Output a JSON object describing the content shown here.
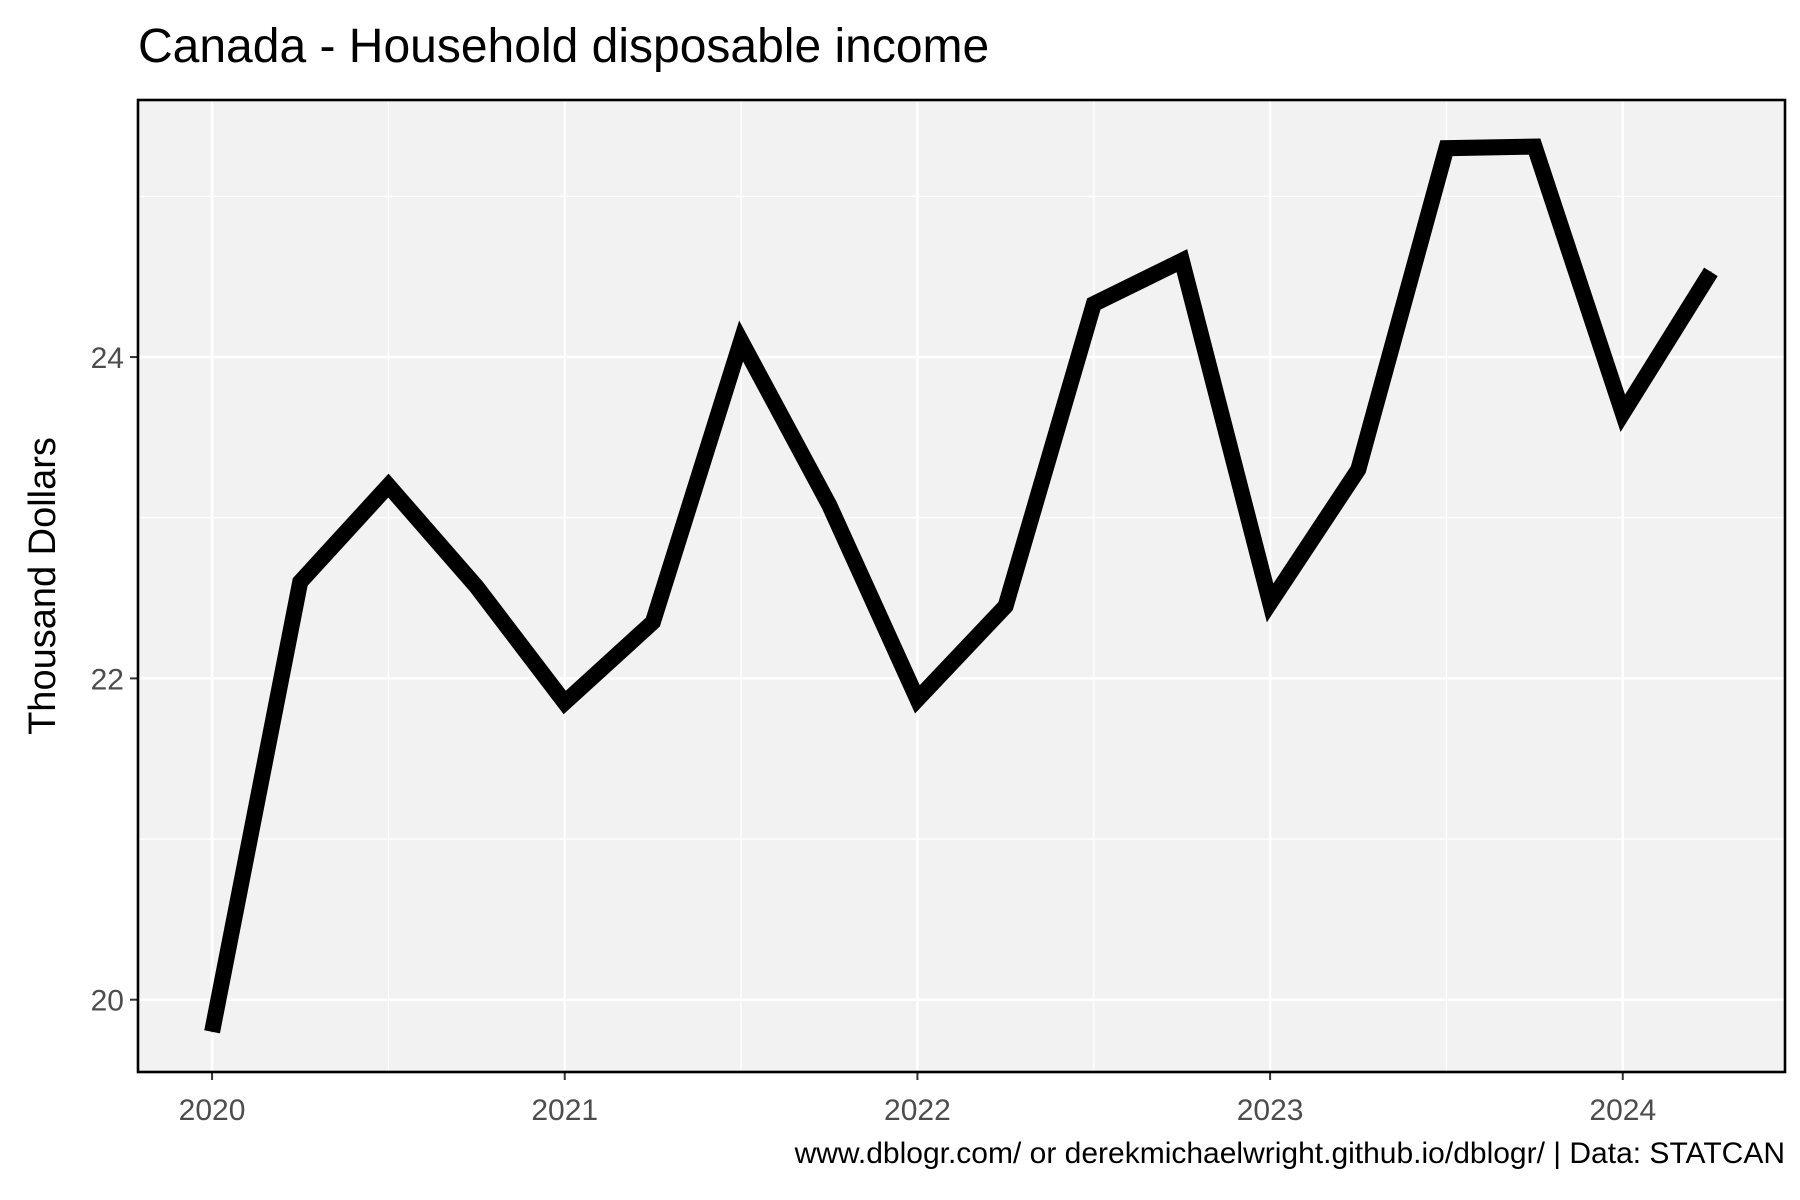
{
  "chart_data": {
    "type": "line",
    "title": "Canada - Household disposable income",
    "xlabel": "",
    "ylabel": "Thousand Dollars",
    "caption": "www.dblogr.com/ or derekmichaelwright.github.io/dblogr/ | Data: STATCAN",
    "x_tick_labels": [
      "2020",
      "2021",
      "2022",
      "2023",
      "2024"
    ],
    "y_tick_labels": [
      "20",
      "22",
      "24"
    ],
    "x_ticks": [
      2020,
      2021,
      2022,
      2023,
      2024
    ],
    "y_ticks": [
      20,
      22,
      24
    ],
    "xlim": [
      2019.79,
      2024.46
    ],
    "ylim": [
      19.55,
      25.6
    ],
    "grid": true,
    "panel_color": "#f2f2f2",
    "line_color": "#000000",
    "series": [
      {
        "x": [
          2020.0,
          2020.25,
          2020.5,
          2020.75,
          2021.0,
          2021.25,
          2021.5,
          2021.75,
          2022.0,
          2022.25,
          2022.5,
          2022.75,
          2023.0,
          2023.25,
          2023.5,
          2023.75,
          2024.0,
          2024.25
        ],
        "values": [
          19.8,
          22.6,
          23.2,
          22.57,
          21.85,
          22.35,
          24.1,
          23.08,
          21.87,
          22.45,
          24.33,
          24.6,
          22.47,
          23.3,
          25.3,
          25.31,
          23.65,
          24.53
        ]
      }
    ]
  }
}
